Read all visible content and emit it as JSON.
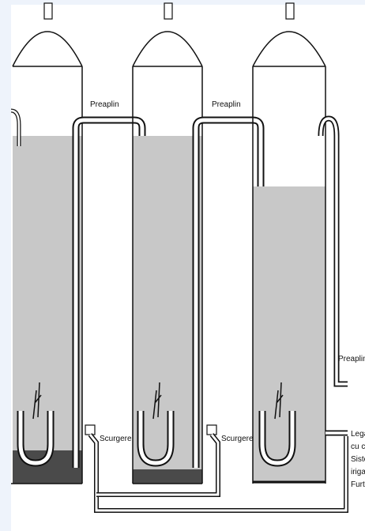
{
  "labels": {
    "overflow_1": "Preaplin",
    "overflow_2": "Preaplin",
    "overflow_3": "Preaplin",
    "drain_1": "Scurgere",
    "drain_2": "Scurgere",
    "connection_line_1": "Legatu",
    "connection_line_2": "cu con",
    "connection_line_3": "Sistem",
    "connection_line_4": "irigat /",
    "connection_line_5": "Furtun"
  },
  "colors": {
    "water": "#c8c8c8",
    "sediment": "#4a4a4a",
    "outline": "#111111",
    "background": "#ffffff",
    "border_tint": "#eef3fb"
  }
}
